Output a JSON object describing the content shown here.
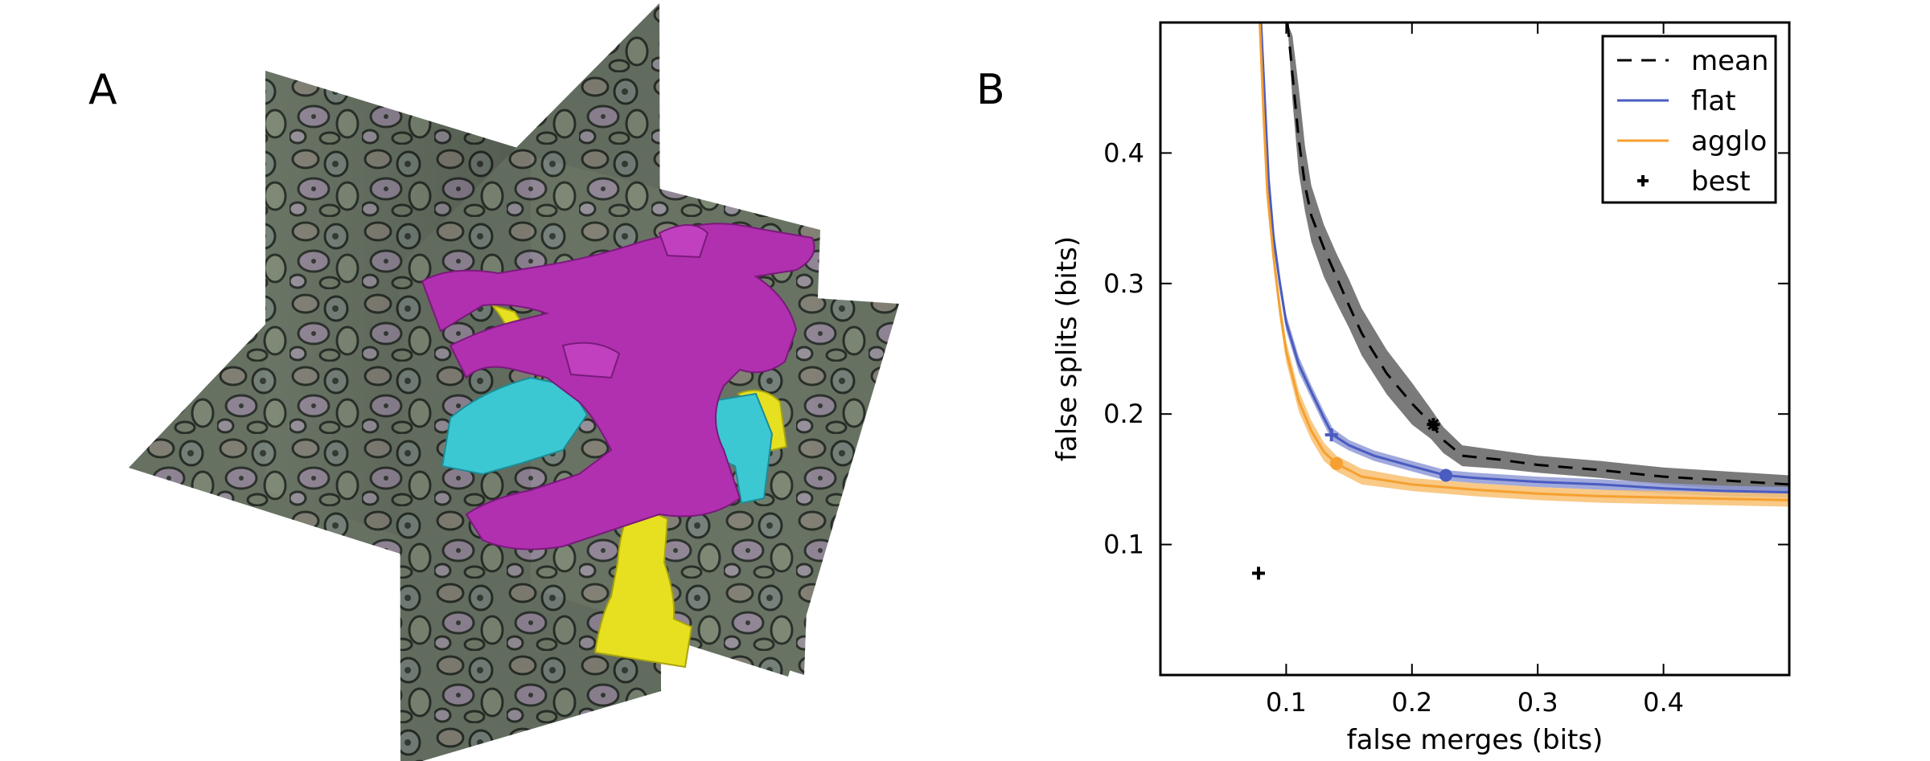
{
  "panels": {
    "a_letter": "A",
    "b_letter": "B"
  },
  "panel_a": {
    "colors": {
      "magenta": "#b030b0",
      "cyan": "#3cc8d2",
      "yellow": "#e6e020",
      "em_base": "#6e7a6a"
    }
  },
  "chart_data": {
    "type": "line",
    "xlabel": "false merges (bits)",
    "ylabel": "false splits (bits)",
    "xlim": [
      0,
      0.5
    ],
    "ylim": [
      0,
      0.5
    ],
    "xticks": [
      0.1,
      0.2,
      0.3,
      0.4
    ],
    "yticks": [
      0.1,
      0.2,
      0.3,
      0.4
    ],
    "tick_labels_x": [
      "0.1",
      "0.2",
      "0.3",
      "0.4"
    ],
    "tick_labels_y": [
      "0.1",
      "0.2",
      "0.3",
      "0.4"
    ],
    "grid": false,
    "legend_position": "top-right",
    "legend": [
      {
        "label": "mean",
        "style": "dashed",
        "color": "#000000"
      },
      {
        "label": "flat",
        "style": "solid",
        "color": "#4a5cc0"
      },
      {
        "label": "agglo",
        "style": "solid",
        "color": "#f5a030"
      },
      {
        "label": "best",
        "style": "marker-plus",
        "color": "#000000"
      }
    ],
    "series": [
      {
        "name": "mean",
        "color": "#000000",
        "band_color": "#7a7a7a",
        "x": [
          0.101,
          0.105,
          0.11,
          0.115,
          0.12,
          0.13,
          0.14,
          0.15,
          0.16,
          0.18,
          0.2,
          0.215,
          0.225,
          0.24,
          0.27,
          0.3,
          0.35,
          0.4,
          0.45,
          0.5
        ],
        "y": [
          0.5,
          0.46,
          0.41,
          0.375,
          0.352,
          0.327,
          0.305,
          0.283,
          0.262,
          0.231,
          0.208,
          0.193,
          0.18,
          0.168,
          0.165,
          0.161,
          0.157,
          0.152,
          0.149,
          0.146
        ],
        "upper": [
          0.5,
          0.49,
          0.45,
          0.405,
          0.375,
          0.345,
          0.323,
          0.303,
          0.281,
          0.249,
          0.224,
          0.204,
          0.19,
          0.176,
          0.172,
          0.168,
          0.164,
          0.159,
          0.156,
          0.153
        ],
        "lower": [
          0.5,
          0.44,
          0.385,
          0.355,
          0.332,
          0.305,
          0.285,
          0.266,
          0.245,
          0.215,
          0.192,
          0.181,
          0.17,
          0.16,
          0.158,
          0.155,
          0.151,
          0.146,
          0.142,
          0.139
        ],
        "best": {
          "x": 0.217,
          "y": 0.192
        }
      },
      {
        "name": "flat",
        "color": "#4a5cc0",
        "band_color": "#8f9ad6",
        "x": [
          0.08,
          0.083,
          0.086,
          0.09,
          0.095,
          0.1,
          0.11,
          0.12,
          0.13,
          0.137,
          0.15,
          0.17,
          0.2,
          0.227,
          0.25,
          0.3,
          0.35,
          0.4,
          0.45,
          0.5
        ],
        "y": [
          0.5,
          0.44,
          0.38,
          0.335,
          0.3,
          0.27,
          0.238,
          0.217,
          0.197,
          0.184,
          0.176,
          0.168,
          0.16,
          0.153,
          0.151,
          0.148,
          0.146,
          0.143,
          0.141,
          0.14
        ],
        "upper": [
          0.5,
          0.45,
          0.39,
          0.342,
          0.306,
          0.276,
          0.244,
          0.222,
          0.202,
          0.189,
          0.18,
          0.172,
          0.164,
          0.157,
          0.155,
          0.152,
          0.15,
          0.147,
          0.145,
          0.144
        ],
        "lower": [
          0.5,
          0.43,
          0.37,
          0.328,
          0.294,
          0.264,
          0.232,
          0.212,
          0.192,
          0.179,
          0.172,
          0.164,
          0.156,
          0.149,
          0.147,
          0.144,
          0.142,
          0.139,
          0.137,
          0.136
        ],
        "best": {
          "x": 0.136,
          "y": 0.184
        },
        "marker": {
          "x": 0.227,
          "y": 0.153
        }
      },
      {
        "name": "agglo",
        "color": "#f5a030",
        "band_color": "#f8c070",
        "x": [
          0.079,
          0.082,
          0.085,
          0.09,
          0.095,
          0.1,
          0.11,
          0.12,
          0.13,
          0.14,
          0.16,
          0.2,
          0.25,
          0.3,
          0.35,
          0.4,
          0.45,
          0.5
        ],
        "y": [
          0.5,
          0.43,
          0.37,
          0.32,
          0.28,
          0.248,
          0.21,
          0.187,
          0.171,
          0.162,
          0.152,
          0.146,
          0.142,
          0.139,
          0.137,
          0.136,
          0.135,
          0.134
        ],
        "upper": [
          0.5,
          0.44,
          0.38,
          0.328,
          0.288,
          0.256,
          0.218,
          0.195,
          0.178,
          0.168,
          0.158,
          0.151,
          0.147,
          0.144,
          0.142,
          0.141,
          0.14,
          0.139
        ],
        "lower": [
          0.5,
          0.42,
          0.36,
          0.312,
          0.272,
          0.24,
          0.202,
          0.18,
          0.164,
          0.156,
          0.146,
          0.141,
          0.137,
          0.134,
          0.132,
          0.131,
          0.13,
          0.129
        ],
        "marker": {
          "x": 0.14,
          "y": 0.162
        }
      }
    ],
    "best_point": {
      "x": 0.078,
      "y": 0.078
    }
  }
}
